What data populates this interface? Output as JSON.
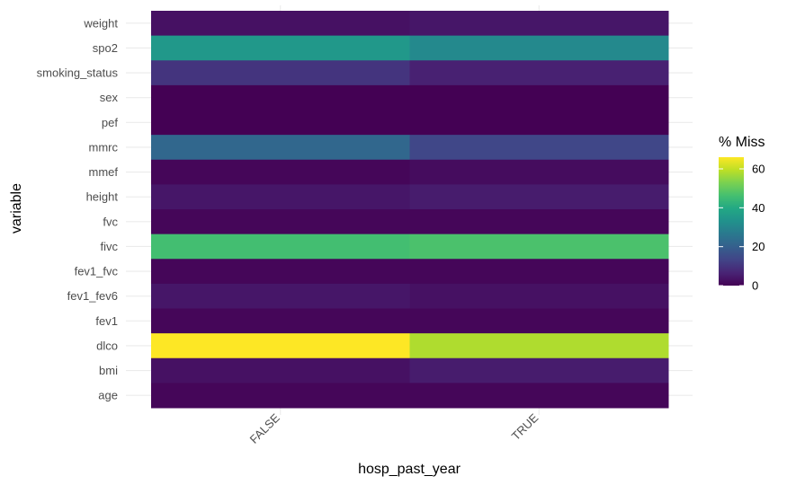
{
  "chart_data": {
    "type": "heatmap",
    "xlabel": "hosp_past_year",
    "ylabel": "variable",
    "legend_title": "% Miss",
    "legend_placement": "right",
    "legend_ticks": [
      0,
      20,
      40,
      60
    ],
    "color_scale": "viridis",
    "color_range": [
      0,
      66
    ],
    "grid": true,
    "x_categories": [
      "FALSE",
      "TRUE"
    ],
    "y_categories": [
      "weight",
      "spo2",
      "smoking_status",
      "sex",
      "pef",
      "mmrc",
      "mmef",
      "height",
      "fvc",
      "fivc",
      "fev1_fvc",
      "fev1_fev6",
      "fev1",
      "dlco",
      "bmi",
      "age"
    ],
    "series": [
      {
        "name": "FALSE",
        "values": [
          3,
          35,
          10,
          0,
          0,
          22,
          1,
          4,
          1,
          46,
          1,
          4,
          1,
          66,
          3,
          1
        ]
      },
      {
        "name": "TRUE",
        "values": [
          4,
          31,
          6,
          0,
          0,
          14,
          2,
          5,
          1,
          47,
          1,
          3,
          1,
          58,
          5,
          1
        ]
      }
    ]
  }
}
